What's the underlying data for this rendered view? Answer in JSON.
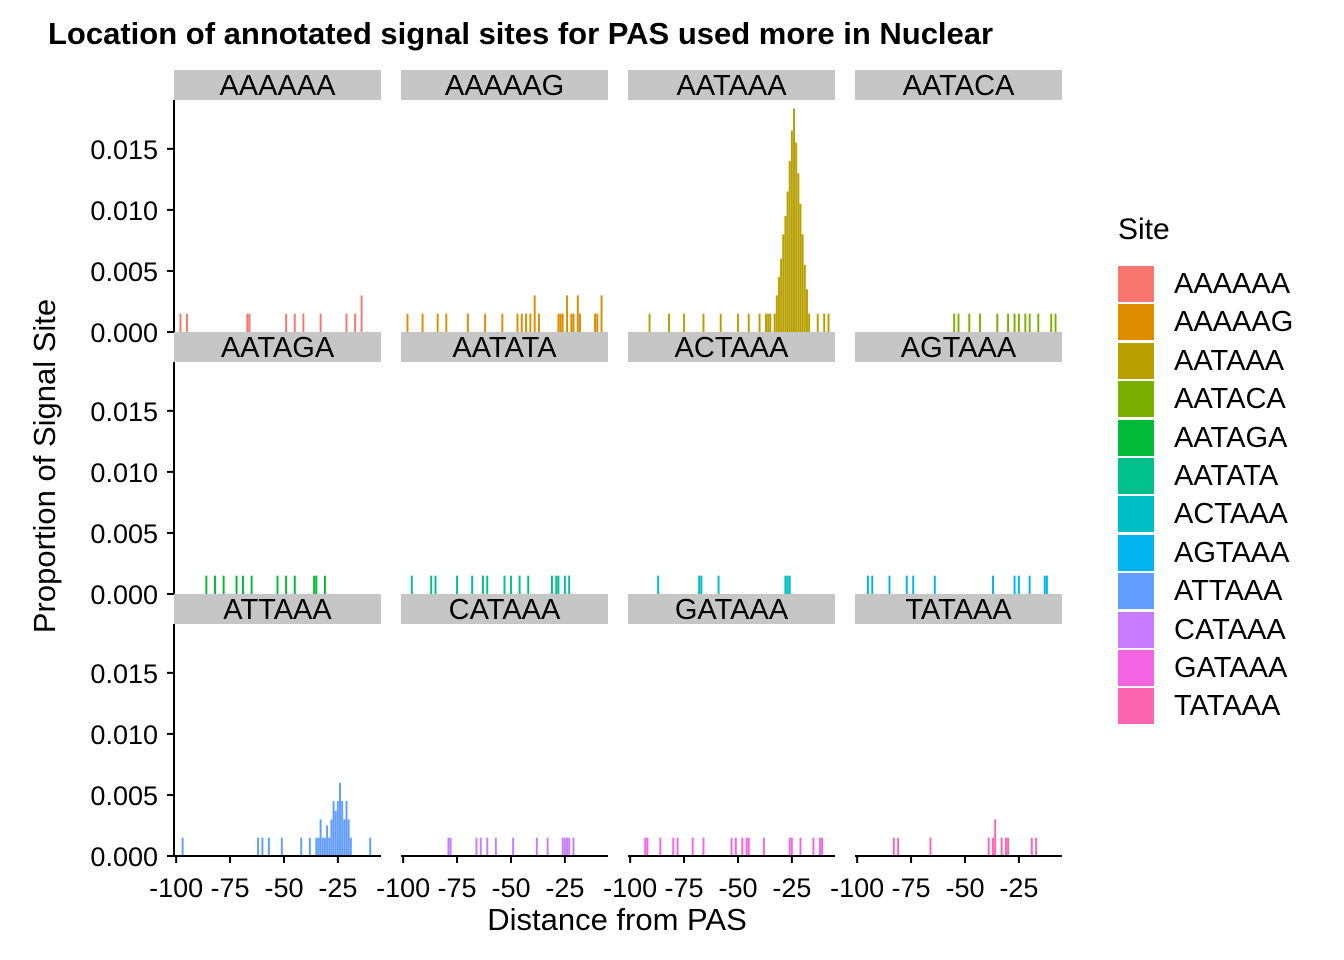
{
  "chart_data": {
    "type": "bar",
    "title": "Location of annotated signal sites for PAS used more in Nuclear",
    "xlabel": "Distance from PAS",
    "ylabel": "Proportion of Signal Site",
    "xlim": [
      -101,
      -5
    ],
    "ylim": [
      0,
      0.019
    ],
    "x_ticks": [
      -100,
      -75,
      -50,
      -25
    ],
    "x_tick_labels": [
      "-100",
      "-75",
      "-50",
      "-25"
    ],
    "y_ticks": [
      0,
      0.005,
      0.01,
      0.015
    ],
    "y_tick_labels": [
      "0.000",
      "0.005",
      "0.010",
      "0.015"
    ],
    "grid": false,
    "legend": {
      "title": "Site",
      "position": "right",
      "entries": [
        "AAAAAA",
        "AAAAAG",
        "AATAAA",
        "AATACA",
        "AATAGA",
        "AATATA",
        "ACTAAA",
        "AGTAAA",
        "ATTAAA",
        "CATAAA",
        "GATAAA",
        "TATAAA"
      ]
    },
    "facets": [
      {
        "site": "AAAAAA",
        "color": "#F8766D",
        "bars": [
          {
            "x": -98,
            "y": 0.0015
          },
          {
            "x": -95,
            "y": 0.0015
          },
          {
            "x": -67,
            "y": 0.0015
          },
          {
            "x": -66,
            "y": 0.0015
          },
          {
            "x": -49,
            "y": 0.0015
          },
          {
            "x": -45,
            "y": 0.0015
          },
          {
            "x": -41,
            "y": 0.0015
          },
          {
            "x": -33,
            "y": 0.0015
          },
          {
            "x": -21,
            "y": 0.0015
          },
          {
            "x": -17,
            "y": 0.0015
          },
          {
            "x": -14,
            "y": 0.003
          }
        ]
      },
      {
        "site": "AAAAAG",
        "color": "#DE8C00",
        "bars": [
          {
            "x": -98,
            "y": 0.0015
          },
          {
            "x": -91,
            "y": 0.0015
          },
          {
            "x": -84,
            "y": 0.0015
          },
          {
            "x": -80,
            "y": 0.0015
          },
          {
            "x": -70,
            "y": 0.0015
          },
          {
            "x": -62,
            "y": 0.0015
          },
          {
            "x": -54,
            "y": 0.0015
          },
          {
            "x": -47,
            "y": 0.0015
          },
          {
            "x": -45,
            "y": 0.0015
          },
          {
            "x": -43,
            "y": 0.0015
          },
          {
            "x": -41,
            "y": 0.0015
          },
          {
            "x": -39,
            "y": 0.003
          },
          {
            "x": -37,
            "y": 0.0015
          },
          {
            "x": -28,
            "y": 0.0015
          },
          {
            "x": -27,
            "y": 0.0015
          },
          {
            "x": -26,
            "y": 0.0015
          },
          {
            "x": -24,
            "y": 0.003
          },
          {
            "x": -22,
            "y": 0.0015
          },
          {
            "x": -21,
            "y": 0.0015
          },
          {
            "x": -19,
            "y": 0.003
          },
          {
            "x": -18,
            "y": 0.0015
          },
          {
            "x": -11,
            "y": 0.0015
          },
          {
            "x": -10,
            "y": 0.0015
          },
          {
            "x": -8,
            "y": 0.003
          }
        ]
      },
      {
        "site": "AATAAA",
        "color": "#B79F00",
        "bars": [
          {
            "x": -91,
            "y": 0.0015
          },
          {
            "x": -82,
            "y": 0.0015
          },
          {
            "x": -75,
            "y": 0.0015
          },
          {
            "x": -66,
            "y": 0.0015
          },
          {
            "x": -58,
            "y": 0.0015
          },
          {
            "x": -50,
            "y": 0.0015
          },
          {
            "x": -45,
            "y": 0.0015
          },
          {
            "x": -40,
            "y": 0.0015
          },
          {
            "x": -37,
            "y": 0.0015
          },
          {
            "x": -36,
            "y": 0.0015
          },
          {
            "x": -35,
            "y": 0.0015
          },
          {
            "x": -33,
            "y": 0.0015
          },
          {
            "x": -32,
            "y": 0.003
          },
          {
            "x": -31,
            "y": 0.0045
          },
          {
            "x": -30,
            "y": 0.006
          },
          {
            "x": -29,
            "y": 0.008
          },
          {
            "x": -28,
            "y": 0.0095
          },
          {
            "x": -27,
            "y": 0.0115
          },
          {
            "x": -26,
            "y": 0.014
          },
          {
            "x": -25,
            "y": 0.0165
          },
          {
            "x": -24,
            "y": 0.0183
          },
          {
            "x": -23,
            "y": 0.0155
          },
          {
            "x": -22,
            "y": 0.013
          },
          {
            "x": -21,
            "y": 0.0105
          },
          {
            "x": -20,
            "y": 0.008
          },
          {
            "x": -19,
            "y": 0.0055
          },
          {
            "x": -18,
            "y": 0.0035
          },
          {
            "x": -17,
            "y": 0.0015
          },
          {
            "x": -13,
            "y": 0.0015
          },
          {
            "x": -10,
            "y": 0.0015
          },
          {
            "x": -8,
            "y": 0.0015
          }
        ]
      },
      {
        "site": "AATACA",
        "color": "#7CAE00",
        "bars": [
          {
            "x": -55,
            "y": 0.0015
          },
          {
            "x": -53,
            "y": 0.0015
          },
          {
            "x": -48,
            "y": 0.0015
          },
          {
            "x": -43,
            "y": 0.0015
          },
          {
            "x": -35,
            "y": 0.0015
          },
          {
            "x": -30,
            "y": 0.0015
          },
          {
            "x": -27,
            "y": 0.0015
          },
          {
            "x": -25,
            "y": 0.0015
          },
          {
            "x": -22,
            "y": 0.0015
          },
          {
            "x": -20,
            "y": 0.0015
          },
          {
            "x": -16,
            "y": 0.0015
          },
          {
            "x": -10,
            "y": 0.0015
          },
          {
            "x": -8,
            "y": 0.0015
          }
        ]
      },
      {
        "site": "AATAGA",
        "color": "#00BA38",
        "bars": [
          {
            "x": -86,
            "y": 0.0015
          },
          {
            "x": -82,
            "y": 0.0015
          },
          {
            "x": -78,
            "y": 0.0015
          },
          {
            "x": -72,
            "y": 0.0015
          },
          {
            "x": -69,
            "y": 0.0015
          },
          {
            "x": -65,
            "y": 0.0015
          },
          {
            "x": -53,
            "y": 0.0015
          },
          {
            "x": -49,
            "y": 0.0015
          },
          {
            "x": -45,
            "y": 0.0015
          },
          {
            "x": -36,
            "y": 0.0015
          },
          {
            "x": -35,
            "y": 0.0015
          },
          {
            "x": -31,
            "y": 0.0015
          }
        ]
      },
      {
        "site": "AATATA",
        "color": "#00C08B",
        "bars": [
          {
            "x": -96,
            "y": 0.0015
          },
          {
            "x": -87,
            "y": 0.0015
          },
          {
            "x": -85,
            "y": 0.0015
          },
          {
            "x": -75,
            "y": 0.0015
          },
          {
            "x": -68,
            "y": 0.0015
          },
          {
            "x": -63,
            "y": 0.0015
          },
          {
            "x": -61,
            "y": 0.0015
          },
          {
            "x": -53,
            "y": 0.0015
          },
          {
            "x": -50,
            "y": 0.0015
          },
          {
            "x": -46,
            "y": 0.0015
          },
          {
            "x": -42,
            "y": 0.0015
          },
          {
            "x": -31,
            "y": 0.0015
          },
          {
            "x": -29,
            "y": 0.0015
          },
          {
            "x": -28,
            "y": 0.0015
          },
          {
            "x": -25,
            "y": 0.0015
          },
          {
            "x": -23,
            "y": 0.0015
          }
        ]
      },
      {
        "site": "ACTAAA",
        "color": "#00BFC4",
        "bars": [
          {
            "x": -87,
            "y": 0.0015
          },
          {
            "x": -68,
            "y": 0.0015
          },
          {
            "x": -67,
            "y": 0.0015
          },
          {
            "x": -59,
            "y": 0.0015
          },
          {
            "x": -28,
            "y": 0.0015
          },
          {
            "x": -27,
            "y": 0.0015
          },
          {
            "x": -26,
            "y": 0.0015
          }
        ]
      },
      {
        "site": "AGTAAA",
        "color": "#00B4F0",
        "bars": [
          {
            "x": -95,
            "y": 0.0015
          },
          {
            "x": -93,
            "y": 0.0015
          },
          {
            "x": -85,
            "y": 0.0015
          },
          {
            "x": -77,
            "y": 0.0015
          },
          {
            "x": -74,
            "y": 0.0015
          },
          {
            "x": -64,
            "y": 0.0015
          },
          {
            "x": -37,
            "y": 0.0015
          },
          {
            "x": -27,
            "y": 0.0015
          },
          {
            "x": -25,
            "y": 0.0015
          },
          {
            "x": -20,
            "y": 0.0015
          },
          {
            "x": -13,
            "y": 0.0015
          },
          {
            "x": -12,
            "y": 0.0015
          }
        ]
      },
      {
        "site": "ATTAAA",
        "color": "#619CFF",
        "bars": [
          {
            "x": -97,
            "y": 0.0015
          },
          {
            "x": -62,
            "y": 0.0015
          },
          {
            "x": -60,
            "y": 0.0015
          },
          {
            "x": -57,
            "y": 0.0015
          },
          {
            "x": -51,
            "y": 0.0015
          },
          {
            "x": -42,
            "y": 0.0015
          },
          {
            "x": -38,
            "y": 0.0015
          },
          {
            "x": -35,
            "y": 0.0015
          },
          {
            "x": -34,
            "y": 0.0015
          },
          {
            "x": -33,
            "y": 0.003
          },
          {
            "x": -32,
            "y": 0.0015
          },
          {
            "x": -31,
            "y": 0.0015
          },
          {
            "x": -30,
            "y": 0.0025
          },
          {
            "x": -29,
            "y": 0.0015
          },
          {
            "x": -28,
            "y": 0.003
          },
          {
            "x": -27,
            "y": 0.0045
          },
          {
            "x": -26,
            "y": 0.0037
          },
          {
            "x": -25,
            "y": 0.0045
          },
          {
            "x": -24,
            "y": 0.006
          },
          {
            "x": -23,
            "y": 0.0045
          },
          {
            "x": -22,
            "y": 0.003
          },
          {
            "x": -21,
            "y": 0.0045
          },
          {
            "x": -20,
            "y": 0.003
          },
          {
            "x": -19,
            "y": 0.0015
          },
          {
            "x": -10,
            "y": 0.0015
          }
        ]
      },
      {
        "site": "CATAAA",
        "color": "#C77CFF",
        "bars": [
          {
            "x": -79,
            "y": 0.0015
          },
          {
            "x": -78,
            "y": 0.0015
          },
          {
            "x": -66,
            "y": 0.0015
          },
          {
            "x": -64,
            "y": 0.0015
          },
          {
            "x": -61,
            "y": 0.0015
          },
          {
            "x": -57,
            "y": 0.0015
          },
          {
            "x": -49,
            "y": 0.0015
          },
          {
            "x": -38,
            "y": 0.0015
          },
          {
            "x": -33,
            "y": 0.0015
          },
          {
            "x": -26,
            "y": 0.0015
          },
          {
            "x": -25,
            "y": 0.0015
          },
          {
            "x": -24,
            "y": 0.0015
          },
          {
            "x": -23,
            "y": 0.0015
          },
          {
            "x": -21,
            "y": 0.0015
          }
        ]
      },
      {
        "site": "GATAAA",
        "color": "#F564E3",
        "bars": [
          {
            "x": -93,
            "y": 0.0015
          },
          {
            "x": -92,
            "y": 0.0015
          },
          {
            "x": -86,
            "y": 0.0015
          },
          {
            "x": -80,
            "y": 0.0015
          },
          {
            "x": -78,
            "y": 0.0015
          },
          {
            "x": -71,
            "y": 0.0015
          },
          {
            "x": -66,
            "y": 0.0015
          },
          {
            "x": -53,
            "y": 0.0015
          },
          {
            "x": -51,
            "y": 0.0015
          },
          {
            "x": -48,
            "y": 0.0015
          },
          {
            "x": -46,
            "y": 0.0015
          },
          {
            "x": -45,
            "y": 0.0015
          },
          {
            "x": -38,
            "y": 0.0015
          },
          {
            "x": -26,
            "y": 0.0015
          },
          {
            "x": -25,
            "y": 0.0015
          },
          {
            "x": -21,
            "y": 0.0015
          },
          {
            "x": -15,
            "y": 0.0015
          },
          {
            "x": -12,
            "y": 0.0015
          },
          {
            "x": -11,
            "y": 0.0015
          }
        ]
      },
      {
        "site": "TATAAA",
        "color": "#FF64B0",
        "bars": [
          {
            "x": -83,
            "y": 0.0015
          },
          {
            "x": -81,
            "y": 0.0015
          },
          {
            "x": -66,
            "y": 0.0015
          },
          {
            "x": -39,
            "y": 0.0015
          },
          {
            "x": -37,
            "y": 0.0015
          },
          {
            "x": -36,
            "y": 0.003
          },
          {
            "x": -33,
            "y": 0.0015
          },
          {
            "x": -31,
            "y": 0.0015
          },
          {
            "x": -30,
            "y": 0.0015
          },
          {
            "x": -19,
            "y": 0.0015
          },
          {
            "x": -17,
            "y": 0.0015
          }
        ]
      }
    ]
  }
}
